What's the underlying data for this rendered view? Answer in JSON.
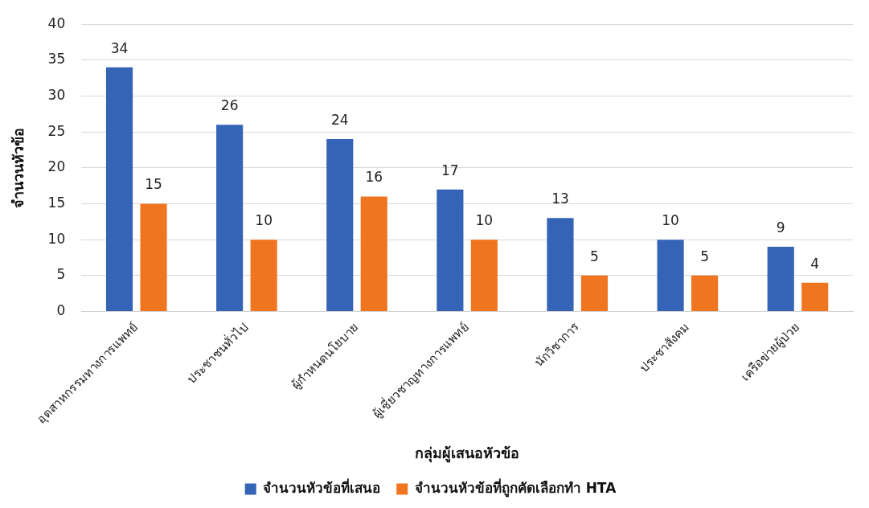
{
  "chart_data": {
    "type": "bar",
    "xlabel": "กลุ่มผู้เสนอหัวข้อ",
    "ylabel": "จำนวนหัวข้อ",
    "categories": [
      "อุตสาหกรรมทางการแพทย์",
      "ประชาชนทั่วไป",
      "ผู้กำหนดนโยบาย",
      "ผู้เชี่ยวชาญทางการแพทย์",
      "นักวิชาการ",
      "ประชาสังคม",
      "เครือข่ายผู้ป่วย"
    ],
    "series": [
      {
        "name": "จำนวนหัวข้อที่เสนอ",
        "color": "#3563b5",
        "values": [
          34,
          26,
          24,
          17,
          13,
          10,
          9
        ]
      },
      {
        "name": "จำนวนหัวข้อที่ถูกคัดเลือกทำ HTA",
        "color": "#f07521",
        "values": [
          15,
          10,
          16,
          10,
          5,
          5,
          4
        ]
      }
    ],
    "ylim": [
      0,
      40
    ],
    "yticks": [
      0,
      5,
      10,
      15,
      20,
      25,
      30,
      35,
      40
    ],
    "grid": "y",
    "legend": "bottom",
    "data_labels": true
  }
}
